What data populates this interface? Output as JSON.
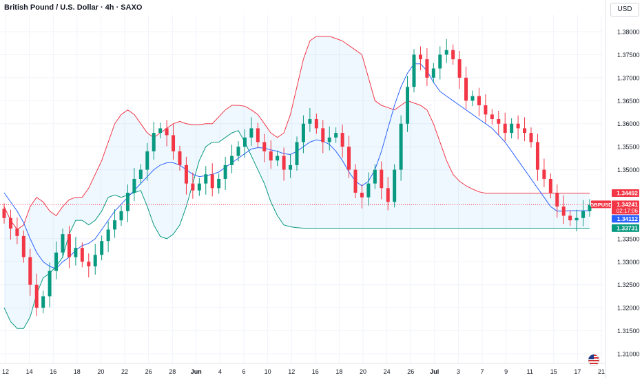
{
  "chart_data": {
    "type": "candlestick",
    "title": "British Pound / U.S. Dollar · 4h · SAXO",
    "currency": "USD",
    "symbol": "GBPUSD",
    "y_ticks": [
      "1.38000",
      "1.37500",
      "1.37000",
      "1.36500",
      "1.36000",
      "1.35500",
      "1.35000",
      "1.33500",
      "1.33000",
      "1.32500",
      "1.32000",
      "1.31500",
      "1.31000"
    ],
    "ylim": [
      1.307,
      1.383
    ],
    "x_ticks": [
      "12",
      "14",
      "16",
      "18",
      "20",
      "22",
      "26",
      "28",
      "Jun",
      "4",
      "6",
      "10",
      "12",
      "16",
      "18",
      "20",
      "24",
      "26",
      "Jul",
      "3",
      "7",
      "9",
      "11",
      "15",
      "17",
      "21"
    ],
    "price_labels": [
      {
        "label": "",
        "value": "1.34492",
        "price": 1.34492,
        "color": "#f23645"
      },
      {
        "label": "GBPUSD",
        "value": "1.34241",
        "countdown": "02:17:06",
        "price": 1.34241,
        "color": "#f23645"
      },
      {
        "label": "",
        "value": "1.34112",
        "price": 1.34112,
        "color": "#2962ff"
      },
      {
        "label": "",
        "value": "1.33731",
        "price": 1.33731,
        "color": "#089981"
      }
    ],
    "last_price": 1.34241,
    "indicator": "Bollinger Bands",
    "colors": {
      "up": "#089981",
      "down": "#f23645",
      "basis": "#2962ff",
      "upper": "#f23645",
      "lower": "#089981",
      "fill": "#2196f3"
    },
    "grid": true,
    "series": [
      {
        "name": "close",
        "values": [
          1.3395,
          1.3372,
          1.3356,
          1.331,
          1.325,
          1.32,
          1.3225,
          1.328,
          1.332,
          1.336,
          1.331,
          1.333,
          1.33,
          1.329,
          1.3315,
          1.3345,
          1.337,
          1.339,
          1.341,
          1.345,
          1.348,
          1.35,
          1.354,
          1.358,
          1.359,
          1.3575,
          1.354,
          1.351,
          1.347,
          1.3455,
          1.347,
          1.349,
          1.346,
          1.348,
          1.351,
          1.353,
          1.355,
          1.357,
          1.359,
          1.356,
          1.354,
          1.352,
          1.353,
          1.35,
          1.351,
          1.356,
          1.36,
          1.361,
          1.359,
          1.356,
          1.357,
          1.358,
          1.355,
          1.35,
          1.345,
          1.344,
          1.347,
          1.35,
          1.346,
          1.343,
          1.35,
          1.36,
          1.368,
          1.375,
          1.374,
          1.37,
          1.372,
          1.375,
          1.376,
          1.374,
          1.37,
          1.365,
          1.366,
          1.364,
          1.362,
          1.361,
          1.36,
          1.358,
          1.36,
          1.359,
          1.358,
          1.356,
          1.35,
          1.348,
          1.345,
          1.342,
          1.34,
          1.339,
          1.3395,
          1.341,
          1.3424
        ]
      },
      {
        "name": "basis",
        "values": [
          1.345,
          1.343,
          1.341,
          1.3385,
          1.335,
          1.332,
          1.33,
          1.329,
          1.3285,
          1.33,
          1.331,
          1.3325,
          1.3335,
          1.334,
          1.335,
          1.337,
          1.339,
          1.341,
          1.3425,
          1.344,
          1.3455,
          1.347,
          1.3485,
          1.35,
          1.351,
          1.3515,
          1.3515,
          1.351,
          1.35,
          1.349,
          1.3485,
          1.3487,
          1.349,
          1.3495,
          1.3505,
          1.3515,
          1.3525,
          1.3535,
          1.3545,
          1.3548,
          1.3547,
          1.3543,
          1.354,
          1.3535,
          1.3533,
          1.354,
          1.355,
          1.356,
          1.3565,
          1.3562,
          1.3555,
          1.354,
          1.352,
          1.3495,
          1.3475,
          1.3465,
          1.3475,
          1.35,
          1.354,
          1.359,
          1.364,
          1.368,
          1.371,
          1.373,
          1.373,
          1.3715,
          1.369,
          1.367,
          1.366,
          1.365,
          1.364,
          1.363,
          1.362,
          1.361,
          1.36,
          1.359,
          1.3575,
          1.356,
          1.354,
          1.352,
          1.35,
          1.348,
          1.346,
          1.344,
          1.342,
          1.341,
          1.341,
          1.3411,
          1.3411,
          1.3411,
          1.3411
        ]
      },
      {
        "name": "upper",
        "values": [
          1.342,
          1.339,
          1.337,
          1.338,
          1.342,
          1.344,
          1.343,
          1.341,
          1.34,
          1.342,
          1.3435,
          1.344,
          1.344,
          1.346,
          1.349,
          1.352,
          1.356,
          1.36,
          1.362,
          1.363,
          1.362,
          1.36,
          1.358,
          1.357,
          1.358,
          1.359,
          1.36,
          1.3605,
          1.36,
          1.3598,
          1.3598,
          1.36,
          1.36,
          1.3615,
          1.363,
          1.364,
          1.364,
          1.3638,
          1.363,
          1.362,
          1.36,
          1.358,
          1.357,
          1.358,
          1.362,
          1.368,
          1.374,
          1.378,
          1.379,
          1.379,
          1.379,
          1.3785,
          1.378,
          1.377,
          1.376,
          1.375,
          1.37,
          1.365,
          1.364,
          1.3635,
          1.363,
          1.364,
          1.365,
          1.3645,
          1.364,
          1.363,
          1.36,
          1.356,
          1.352,
          1.349,
          1.3475,
          1.3465,
          1.3458,
          1.3452,
          1.3449,
          1.3449,
          1.3449,
          1.3449,
          1.3449,
          1.3449,
          1.3449,
          1.3449,
          1.3449,
          1.3449,
          1.3449,
          1.3449,
          1.3449,
          1.3449,
          1.3449,
          1.3449,
          1.3449
        ]
      },
      {
        "name": "lower",
        "values": [
          1.32,
          1.317,
          1.3155,
          1.3155,
          1.318,
          1.323,
          1.3265,
          1.3275,
          1.329,
          1.331,
          1.336,
          1.339,
          1.339,
          1.338,
          1.339,
          1.341,
          1.344,
          1.3445,
          1.344,
          1.3445,
          1.345,
          1.3455,
          1.342,
          1.338,
          1.3355,
          1.335,
          1.336,
          1.338,
          1.342,
          1.347,
          1.352,
          1.355,
          1.356,
          1.356,
          1.357,
          1.358,
          1.3585,
          1.356,
          1.353,
          1.35,
          1.347,
          1.343,
          1.34,
          1.338,
          1.3376,
          1.3374,
          1.3373,
          1.3373,
          1.3373,
          1.3373,
          1.3373,
          1.3373,
          1.3373,
          1.3373,
          1.3373,
          1.3373,
          1.3373,
          1.3373,
          1.3373,
          1.3373,
          1.3373,
          1.3373,
          1.3373,
          1.3373,
          1.3373,
          1.3373,
          1.3373,
          1.3373,
          1.3373,
          1.3373,
          1.3373,
          1.3373,
          1.3373,
          1.3373,
          1.3373,
          1.3373,
          1.3373,
          1.3373,
          1.3373,
          1.3373,
          1.3373,
          1.3373,
          1.3373,
          1.3373,
          1.3373,
          1.3373,
          1.3373,
          1.3373,
          1.3373,
          1.3373,
          1.3373
        ]
      }
    ]
  }
}
